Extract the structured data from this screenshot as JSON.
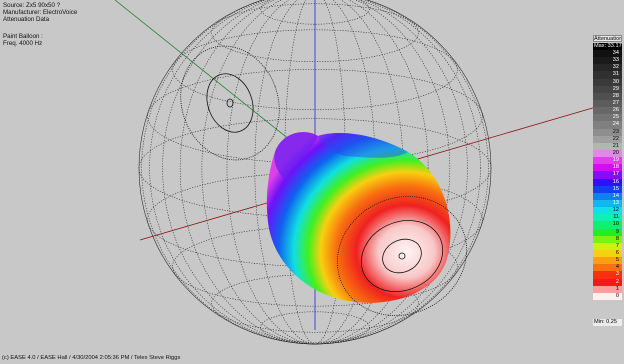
{
  "info": {
    "source": "Source: Zx5 90x50 ?",
    "manufacturer": "Manufacturer: ElectroVoice",
    "data_type": "Attenuation Data",
    "plot_type": "Paint Balloon :",
    "frequency": "Freq. 4000 Hz"
  },
  "legend": {
    "title": "Attenuation [dB]",
    "max_label": "Max: 33.17",
    "min_label": "Min: 0.25",
    "rows": [
      {
        "label": "34",
        "color": "#111111",
        "text_color": "#ffffff"
      },
      {
        "label": "33",
        "color": "#1a1a1a",
        "text_color": "#ffffff"
      },
      {
        "label": "32",
        "color": "#262626",
        "text_color": "#ffffff"
      },
      {
        "label": "31",
        "color": "#303030",
        "text_color": "#ffffff"
      },
      {
        "label": "30",
        "color": "#3a3a3a",
        "text_color": "#ffffff"
      },
      {
        "label": "29",
        "color": "#454545",
        "text_color": "#ffffff"
      },
      {
        "label": "28",
        "color": "#505050",
        "text_color": "#ffffff"
      },
      {
        "label": "27",
        "color": "#5c5c5c",
        "text_color": "#ffffff"
      },
      {
        "label": "26",
        "color": "#686868",
        "text_color": "#ffffff"
      },
      {
        "label": "25",
        "color": "#747474",
        "text_color": "#ffffff"
      },
      {
        "label": "24",
        "color": "#808080",
        "text_color": "#ffffff"
      },
      {
        "label": "23",
        "color": "#8e8e8e",
        "text_color": "#000000"
      },
      {
        "label": "22",
        "color": "#a0a0a0",
        "text_color": "#000000"
      },
      {
        "label": "21",
        "color": "#b4b4b4",
        "text_color": "#000000"
      },
      {
        "label": "20",
        "color": "#e088e8",
        "text_color": "#000000"
      },
      {
        "label": "19",
        "color": "#e040e8",
        "text_color": "#ffffff"
      },
      {
        "label": "18",
        "color": "#d010f0",
        "text_color": "#ffffff"
      },
      {
        "label": "17",
        "color": "#8010f8",
        "text_color": "#ffffff"
      },
      {
        "label": "16",
        "color": "#3010f8",
        "text_color": "#ffffff"
      },
      {
        "label": "15",
        "color": "#1040f0",
        "text_color": "#ffffff"
      },
      {
        "label": "14",
        "color": "#1080f0",
        "text_color": "#ffffff"
      },
      {
        "label": "13",
        "color": "#10b8f0",
        "text_color": "#ffffff"
      },
      {
        "label": "12",
        "color": "#10e0e8",
        "text_color": "#000000"
      },
      {
        "label": "11",
        "color": "#10f0b0",
        "text_color": "#000000"
      },
      {
        "label": "10",
        "color": "#10f070",
        "text_color": "#000000"
      },
      {
        "label": "9",
        "color": "#20f020",
        "text_color": "#000000"
      },
      {
        "label": "8",
        "color": "#80f010",
        "text_color": "#000000"
      },
      {
        "label": "7",
        "color": "#d0f010",
        "text_color": "#000000"
      },
      {
        "label": "6",
        "color": "#f8d010",
        "text_color": "#000000"
      },
      {
        "label": "5",
        "color": "#f8a010",
        "text_color": "#000000"
      },
      {
        "label": "4",
        "color": "#f87010",
        "text_color": "#000000"
      },
      {
        "label": "3",
        "color": "#f83010",
        "text_color": "#ffffff"
      },
      {
        "label": "2",
        "color": "#f81818",
        "text_color": "#ffffff"
      },
      {
        "label": "1",
        "color": "#f8a0a0",
        "text_color": "#000000"
      },
      {
        "label": "0",
        "color": "#fff0f0",
        "text_color": "#000000"
      }
    ]
  },
  "footer": "(c) EASE 4.0  / EASE Hall  / 4/30/2004 2:05:36 PM / Telex Steve Riggs",
  "colors": {
    "background": "#c8c8c8",
    "axis_x": "#8a1010",
    "axis_y": "#2030c0",
    "axis_z": "#208030",
    "wireframe": "#222222"
  }
}
